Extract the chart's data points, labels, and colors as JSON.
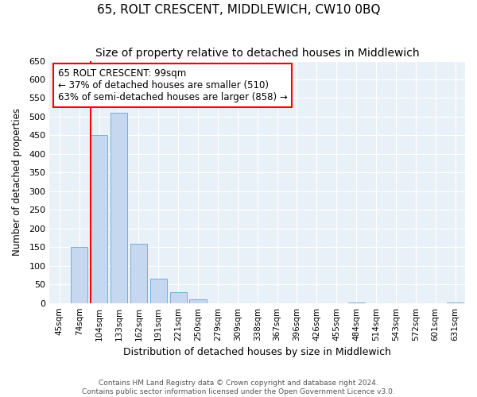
{
  "title": "65, ROLT CRESCENT, MIDDLEWICH, CW10 0BQ",
  "subtitle": "Size of property relative to detached houses in Middlewich",
  "xlabel": "Distribution of detached houses by size in Middlewich",
  "ylabel": "Number of detached properties",
  "categories": [
    "45sqm",
    "74sqm",
    "104sqm",
    "133sqm",
    "162sqm",
    "191sqm",
    "221sqm",
    "250sqm",
    "279sqm",
    "309sqm",
    "338sqm",
    "367sqm",
    "396sqm",
    "426sqm",
    "455sqm",
    "484sqm",
    "514sqm",
    "543sqm",
    "572sqm",
    "601sqm",
    "631sqm"
  ],
  "values": [
    0,
    150,
    450,
    510,
    160,
    65,
    30,
    10,
    0,
    0,
    0,
    0,
    0,
    0,
    0,
    2,
    0,
    0,
    0,
    0,
    2
  ],
  "bar_color": "#c5d8f0",
  "bar_edge_color": "#7aadd4",
  "red_line_index": 2,
  "annotation_text": "65 ROLT CRESCENT: 99sqm\n← 37% of detached houses are smaller (510)\n63% of semi-detached houses are larger (858) →",
  "annotation_box_color": "white",
  "annotation_box_edge": "red",
  "ylim": [
    0,
    650
  ],
  "yticks": [
    0,
    50,
    100,
    150,
    200,
    250,
    300,
    350,
    400,
    450,
    500,
    550,
    600,
    650
  ],
  "footer1": "Contains HM Land Registry data © Crown copyright and database right 2024.",
  "footer2": "Contains public sector information licensed under the Open Government Licence v3.0.",
  "bg_color": "#e8f0f8",
  "title_fontsize": 11,
  "subtitle_fontsize": 10,
  "ann_fontsize": 8.5
}
